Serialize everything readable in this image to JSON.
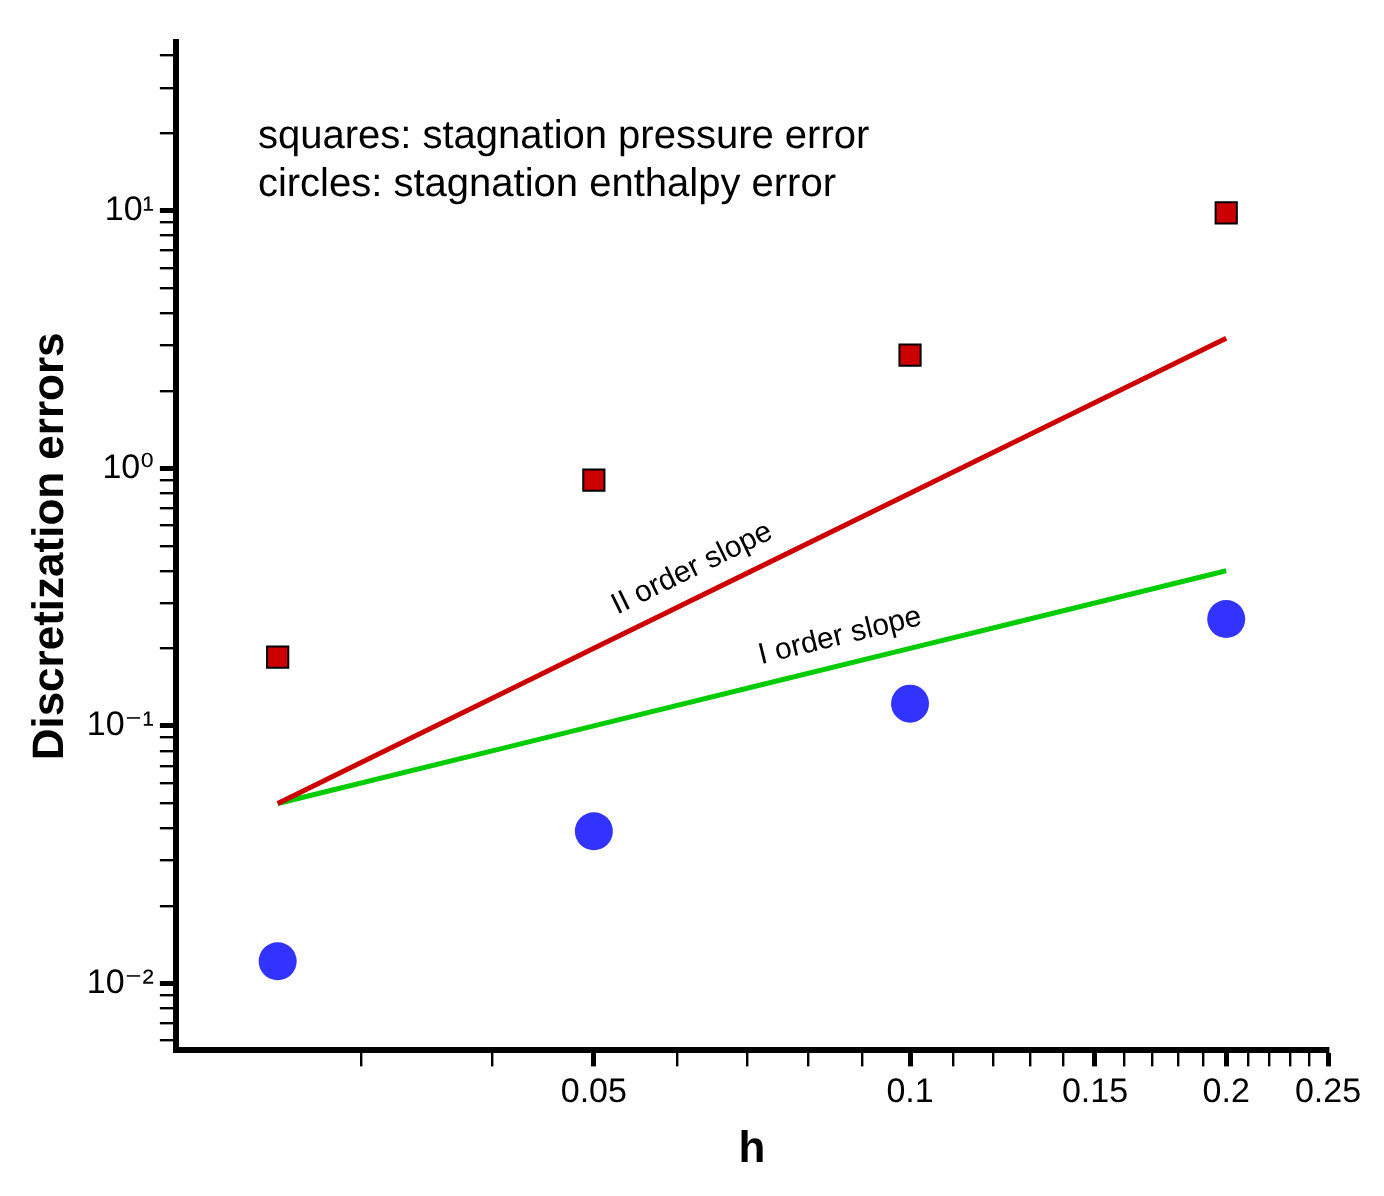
{
  "chart_data": {
    "type": "scatter",
    "xlabel": "h",
    "ylabel": "Discretization errors",
    "log": "xy",
    "grid": false,
    "legend": false,
    "xlim": [
      0.02,
      0.25
    ],
    "ylim": [
      0.0055,
      45
    ],
    "xticks": [
      {
        "value": 0.03,
        "label": null
      },
      {
        "value": 0.04,
        "label": null
      },
      0.05,
      {
        "value": 0.06,
        "label": null
      },
      {
        "value": 0.07,
        "label": null
      },
      {
        "value": 0.08,
        "label": null
      },
      {
        "value": 0.09,
        "label": null
      },
      0.1,
      {
        "value": 0.11,
        "label": null
      },
      {
        "value": 0.12,
        "label": null
      },
      {
        "value": 0.13,
        "label": null
      },
      {
        "value": 0.14,
        "label": null
      },
      0.15,
      {
        "value": 0.16,
        "label": null
      },
      {
        "value": 0.17,
        "label": null
      },
      {
        "value": 0.18,
        "label": null
      },
      {
        "value": 0.19,
        "label": null
      },
      0.2,
      {
        "value": 0.21,
        "label": null
      },
      {
        "value": 0.22,
        "label": null
      },
      {
        "value": 0.23,
        "label": null
      },
      {
        "value": 0.24,
        "label": null
      },
      0.25
    ],
    "yticks": [
      {
        "value": 0.006,
        "label": null
      },
      {
        "value": 0.007,
        "label": null
      },
      {
        "value": 0.008,
        "label": null
      },
      {
        "value": 0.009,
        "label": null
      },
      {
        "value": 0.01,
        "label": "10⁻²"
      },
      {
        "value": 0.02,
        "label": null
      },
      {
        "value": 0.03,
        "label": null
      },
      {
        "value": 0.04,
        "label": null
      },
      {
        "value": 0.05,
        "label": null
      },
      {
        "value": 0.06,
        "label": null
      },
      {
        "value": 0.07,
        "label": null
      },
      {
        "value": 0.08,
        "label": null
      },
      {
        "value": 0.09,
        "label": null
      },
      {
        "value": 0.1,
        "label": "10⁻¹"
      },
      {
        "value": 0.2,
        "label": null
      },
      {
        "value": 0.3,
        "label": null
      },
      {
        "value": 0.4,
        "label": null
      },
      {
        "value": 0.5,
        "label": null
      },
      {
        "value": 0.6,
        "label": null
      },
      {
        "value": 0.7,
        "label": null
      },
      {
        "value": 0.8,
        "label": null
      },
      {
        "value": 0.9,
        "label": null
      },
      {
        "value": 1,
        "label": "10⁰"
      },
      {
        "value": 2,
        "label": null
      },
      {
        "value": 3,
        "label": null
      },
      {
        "value": 4,
        "label": null
      },
      {
        "value": 5,
        "label": null
      },
      {
        "value": 6,
        "label": null
      },
      {
        "value": 7,
        "label": null
      },
      {
        "value": 8,
        "label": null
      },
      {
        "value": 9,
        "label": null
      },
      {
        "value": 10,
        "label": "10¹"
      },
      {
        "value": 20,
        "label": null
      },
      {
        "value": 30,
        "label": null
      },
      {
        "value": 40,
        "label": null
      }
    ],
    "x": [
      0.025,
      0.05,
      0.1,
      0.2
    ],
    "series": [
      {
        "type": "line",
        "color": "#cc0000",
        "marker": "none",
        "values": [
          0.05,
          0.2,
          0.8,
          3.2
        ]
      },
      {
        "type": "line",
        "color": "#00cc00",
        "marker": "none",
        "values": [
          0.05,
          0.1,
          0.2,
          0.4
        ]
      },
      {
        "type": "scatter",
        "color": "#cc0000",
        "marker": "square",
        "values": [
          0.185,
          0.9,
          2.75,
          9.8
        ]
      },
      {
        "type": "scatter",
        "color": "#3333ff",
        "marker": "circle",
        "values": [
          0.0122,
          0.039,
          0.122,
          0.26
        ]
      }
    ],
    "annotations": [
      "squares: stagnation pressure error",
      "circles: stagnation enthalpy error",
      "II order slope",
      "I order slope"
    ]
  }
}
